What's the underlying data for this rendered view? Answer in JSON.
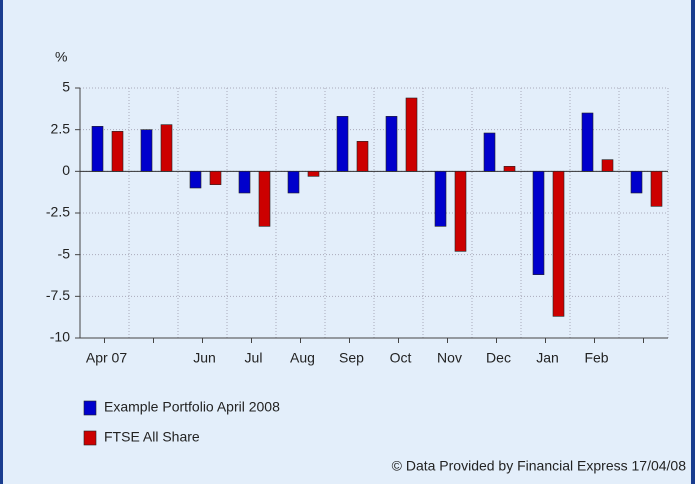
{
  "chart_data": {
    "type": "bar",
    "y_unit_label": "%",
    "categories": [
      "Apr 07",
      null,
      "Jun",
      "Jul",
      "Aug",
      "Sep",
      "Oct",
      "Nov",
      "Dec",
      "Jan",
      "Feb",
      null
    ],
    "series": [
      {
        "name": "Example Portfolio April 2008",
        "color": "#0000cc",
        "values": [
          2.7,
          2.5,
          -1.0,
          -1.3,
          -1.3,
          3.3,
          3.3,
          -3.3,
          2.3,
          -6.2,
          3.5,
          -1.3
        ]
      },
      {
        "name": "FTSE All Share",
        "color": "#cc0000",
        "values": [
          2.4,
          2.8,
          -0.8,
          -3.3,
          -0.3,
          1.8,
          4.4,
          -4.8,
          0.3,
          -8.7,
          0.7,
          -2.1
        ]
      }
    ],
    "ylim": [
      -10,
      5
    ],
    "yticks": [
      5,
      2.5,
      0,
      -2.5,
      -5,
      -7.5,
      -10
    ],
    "grid": true,
    "legend": "bottom-left",
    "footnote": "© Data Provided by Financial Express 17/04/08"
  }
}
